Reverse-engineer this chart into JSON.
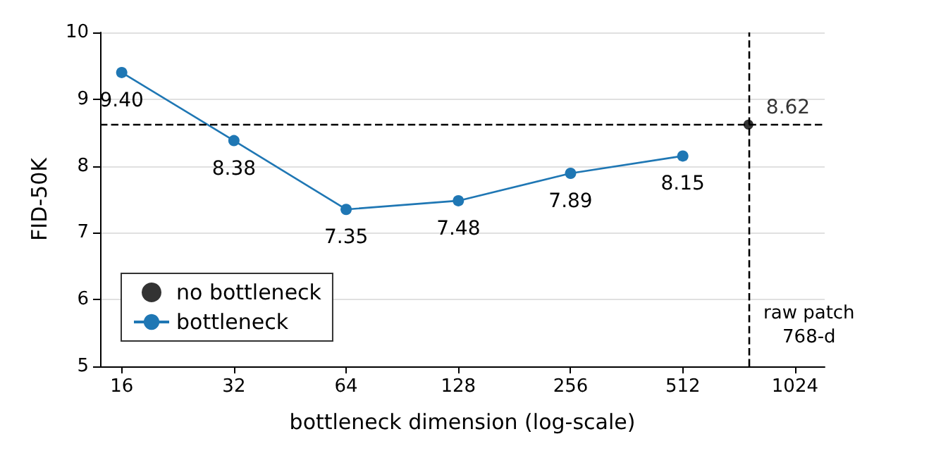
{
  "chart_data": {
    "type": "line",
    "xlabel": "bottleneck dimension (log-scale)",
    "ylabel": "FID-50K",
    "log": "x",
    "xlim": [
      14,
      1230
    ],
    "xticks": [
      16,
      32,
      64,
      128,
      256,
      512,
      1024
    ],
    "ylim": [
      5,
      10
    ],
    "yticks": [
      5,
      6,
      7,
      8,
      9,
      10
    ],
    "grid": "y",
    "legend": "bottom left",
    "marker": "circle",
    "line_style": "solid",
    "series": [
      {
        "name": "no bottleneck",
        "type": "scatter",
        "color": "#000000",
        "x": [
          768
        ],
        "values": [
          8.62
        ],
        "value_labels": [
          "8.62"
        ]
      },
      {
        "name": "bottleneck",
        "color": "#1f77b4",
        "x": [
          16,
          32,
          64,
          128,
          256,
          512
        ],
        "values": [
          9.4,
          8.38,
          7.35,
          7.48,
          7.89,
          8.15
        ],
        "value_labels": [
          "9.40",
          "8.38",
          "7.35",
          "7.48",
          "7.89",
          "8.15"
        ]
      }
    ],
    "ref_lines": [
      {
        "axis": "y",
        "value": 8.62,
        "label": null,
        "color": "#000000",
        "line_style": "dashed"
      },
      {
        "axis": "x",
        "value": 768,
        "label": "raw patch\n768-d",
        "color": "#000000",
        "line_style": "dashed"
      }
    ]
  }
}
